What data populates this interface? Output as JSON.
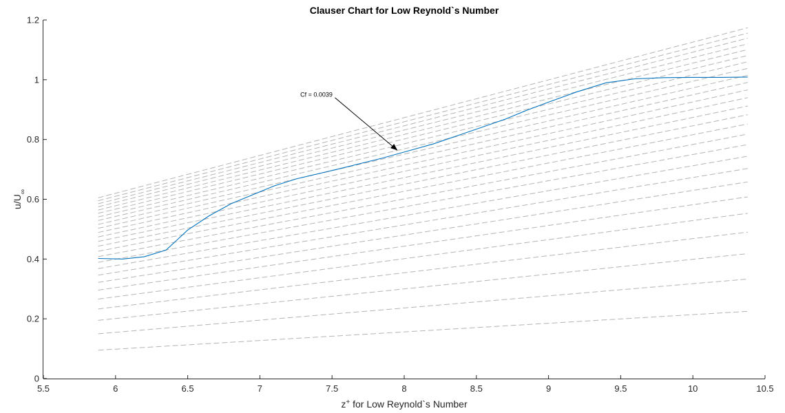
{
  "chart_data": {
    "type": "line",
    "title": "Clauser Chart for Low Reynold`s Number",
    "xlabel": {
      "main": "z",
      "sup": "+",
      "rest": " for Low Reynold`s Number"
    },
    "ylabel": {
      "main": "u/U",
      "sub": "∞"
    },
    "xlim": [
      5.5,
      10.5
    ],
    "ylim": [
      0,
      1.2
    ],
    "xticks": [
      5.5,
      6,
      6.5,
      7,
      7.5,
      8,
      8.5,
      9,
      9.5,
      10,
      10.5
    ],
    "yticks": [
      0,
      0.2,
      0.4,
      0.6,
      0.8,
      1,
      1.2
    ],
    "xtick_labels": [
      "5.5",
      "6",
      "6.5",
      "7",
      "7.5",
      "8",
      "8.5",
      "9",
      "9.5",
      "10",
      "10.5"
    ],
    "ytick_labels": [
      "0",
      "0.2",
      "0.4",
      "0.6",
      "0.8",
      "1",
      "1.2"
    ],
    "grid": false,
    "series": [
      {
        "role": "data",
        "color": "#0072BD",
        "style": "solid",
        "x": [
          5.88,
          6.05,
          6.2,
          6.35,
          6.5,
          6.65,
          6.8,
          6.95,
          7.1,
          7.25,
          7.4,
          7.55,
          7.7,
          7.85,
          8.0,
          8.2,
          8.4,
          8.55,
          8.7,
          8.85,
          9.0,
          9.2,
          9.4,
          9.6,
          9.8,
          10.0,
          10.2,
          10.38
        ],
        "y": [
          0.402,
          0.4,
          0.408,
          0.43,
          0.497,
          0.545,
          0.585,
          0.615,
          0.645,
          0.668,
          0.685,
          0.702,
          0.72,
          0.738,
          0.758,
          0.785,
          0.818,
          0.843,
          0.868,
          0.898,
          0.925,
          0.96,
          0.99,
          1.003,
          1.007,
          1.008,
          1.008,
          1.009
        ]
      }
    ],
    "reference_lines": {
      "color": "#b3b3b3",
      "style": "dashed",
      "x_range": [
        5.88,
        10.38
      ],
      "lines": [
        {
          "y0": 0.095,
          "y1": 0.225
        },
        {
          "y0": 0.15,
          "y1": 0.333
        },
        {
          "y0": 0.195,
          "y1": 0.418
        },
        {
          "y0": 0.233,
          "y1": 0.49
        },
        {
          "y0": 0.266,
          "y1": 0.553
        },
        {
          "y0": 0.296,
          "y1": 0.608
        },
        {
          "y0": 0.322,
          "y1": 0.658
        },
        {
          "y0": 0.346,
          "y1": 0.703
        },
        {
          "y0": 0.368,
          "y1": 0.744
        },
        {
          "y0": 0.389,
          "y1": 0.783
        },
        {
          "y0": 0.408,
          "y1": 0.818
        },
        {
          "y0": 0.426,
          "y1": 0.852
        },
        {
          "y0": 0.443,
          "y1": 0.883
        },
        {
          "y0": 0.459,
          "y1": 0.912
        },
        {
          "y0": 0.474,
          "y1": 0.94
        },
        {
          "y0": 0.489,
          "y1": 0.966
        },
        {
          "y0": 0.503,
          "y1": 0.991
        },
        {
          "y0": 0.516,
          "y1": 1.015
        },
        {
          "y0": 0.529,
          "y1": 1.038
        },
        {
          "y0": 0.541,
          "y1": 1.06
        },
        {
          "y0": 0.553,
          "y1": 1.081
        },
        {
          "y0": 0.564,
          "y1": 1.101
        },
        {
          "y0": 0.575,
          "y1": 1.12
        },
        {
          "y0": 0.585,
          "y1": 1.139
        },
        {
          "y0": 0.595,
          "y1": 1.156
        },
        {
          "y0": 0.605,
          "y1": 1.174
        }
      ]
    },
    "annotation": {
      "text": "Cf = 0.0039",
      "text_x": 7.28,
      "text_y": 0.95,
      "arrow_from": [
        7.52,
        0.94
      ],
      "arrow_to": [
        7.95,
        0.765
      ]
    },
    "colors": {
      "axis": "#262626",
      "background": "#ffffff"
    }
  }
}
